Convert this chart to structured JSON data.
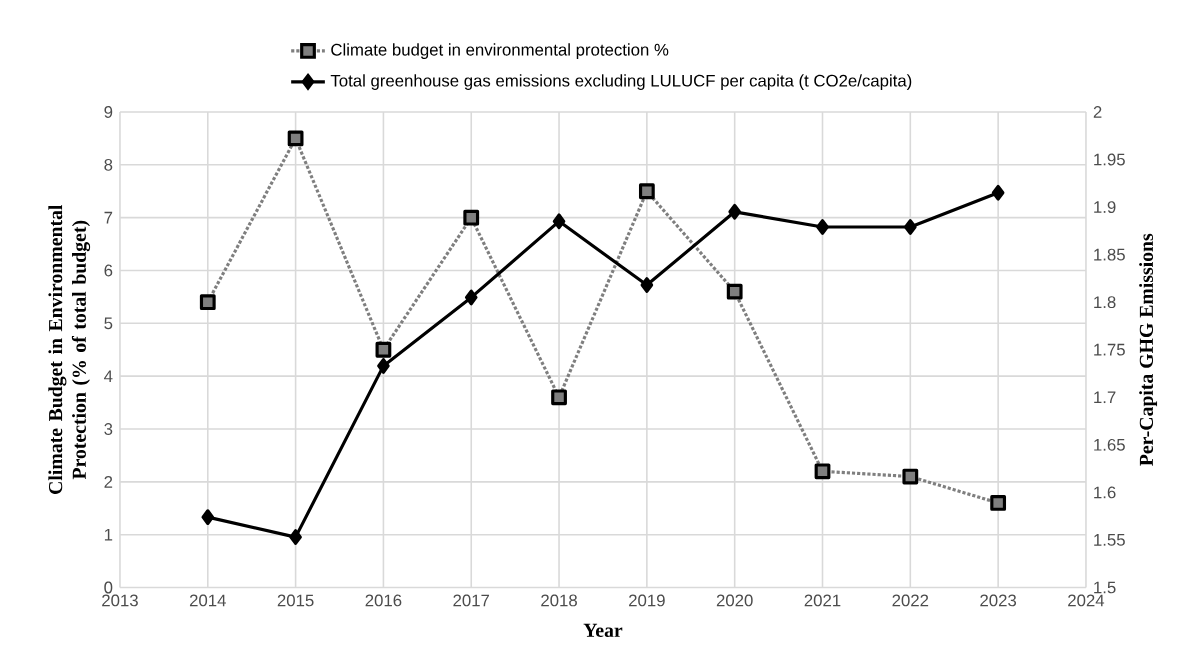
{
  "chart_data": {
    "type": "line",
    "xlabel": "Year",
    "ylabel": "Climate Budget in Environmental Protection (% of total budget)",
    "y2label": "Per-Capita GHG Emissions",
    "x": [
      2014,
      2015,
      2016,
      2017,
      2018,
      2019,
      2020,
      2021,
      2022,
      2023
    ],
    "series": [
      {
        "name": "Climate budget in environmental protection %",
        "color": "#7f7f7f",
        "values": [
          5.4,
          8.5,
          4.5,
          7.0,
          3.6,
          7.5,
          5.6,
          2.2,
          2.1,
          1.6
        ],
        "marker": "square",
        "line_style": "dotted"
      },
      {
        "name": "Total greenhouse gas emissions excluding LULUCF per capita (t CO2e/capita)",
        "color": "#000000",
        "values": [
          1.574,
          1.553,
          1.733,
          1.805,
          1.885,
          1.818,
          1.895,
          1.879,
          1.879,
          1.915
        ],
        "marker": "diamond",
        "line_style": "solid",
        "axis": "y2"
      }
    ],
    "xlim": [
      2013,
      2024
    ],
    "xticks": [
      2013,
      2014,
      2015,
      2016,
      2017,
      2018,
      2019,
      2020,
      2021,
      2022,
      2023,
      2024
    ],
    "ylim": [
      0,
      9
    ],
    "yticks": [
      0,
      1,
      2,
      3,
      4,
      5,
      6,
      7,
      8,
      9
    ],
    "y2lim": [
      1.5,
      2
    ],
    "y2ticks": [
      1.5,
      1.55,
      1.6,
      1.65,
      1.7,
      1.75,
      1.8,
      1.85,
      1.9,
      1.95,
      2
    ],
    "grid": true,
    "legend": "top"
  }
}
